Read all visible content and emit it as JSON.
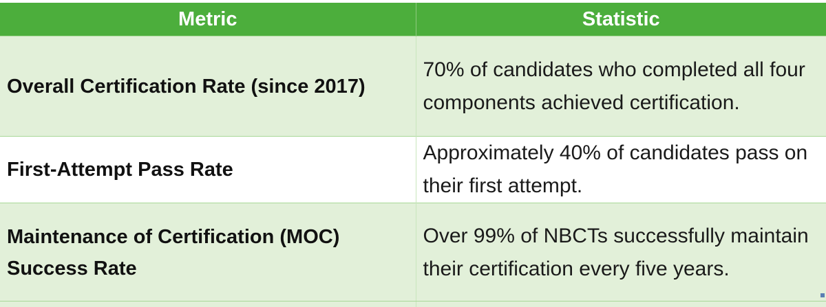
{
  "table": {
    "headers": [
      "Metric",
      "Statistic"
    ],
    "rows": [
      {
        "metric": "Overall Certification Rate (since 2017)",
        "statistic": "70% of candidates who completed all four components achieved certification."
      },
      {
        "metric": "First-Attempt Pass Rate",
        "statistic": "Approximately 40% of candidates pass on their first attempt."
      },
      {
        "metric": "Maintenance of Certification (MOC) Success Rate",
        "statistic": "Over 99% of NBCTs successfully maintain their certification every five years."
      }
    ]
  },
  "colors": {
    "header_bg": "#4cae3c",
    "band_bg": "#e2f0d9",
    "plain_bg": "#ffffff"
  }
}
